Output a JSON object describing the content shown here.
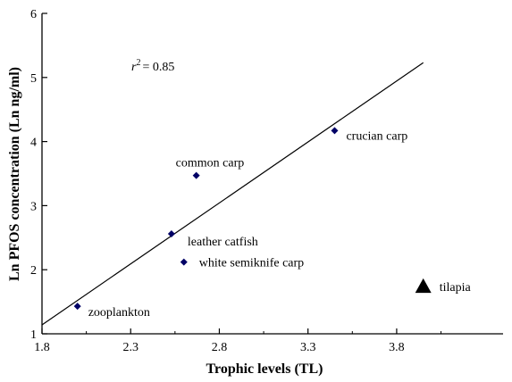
{
  "chart_data": {
    "type": "scatter",
    "title": "",
    "xlabel": "Trophic levels (TL)",
    "ylabel": "Ln PFOS concentration (Ln ng/ml)",
    "xlim": [
      1.8,
      4.4
    ],
    "ylim": [
      1,
      6
    ],
    "xticks": [
      1.8,
      2.3,
      2.8,
      3.3,
      3.8
    ],
    "xtick_labels": [
      "1.8",
      "2.3",
      "2.8",
      "3.3",
      "3.8"
    ],
    "yticks": [
      1,
      2,
      3,
      4,
      5,
      6
    ],
    "ytick_labels": [
      "1",
      "2",
      "3",
      "4",
      "5",
      "6"
    ],
    "points": [
      {
        "name": "zooplankton",
        "x": 2.0,
        "y": 1.43,
        "marker": "diamond"
      },
      {
        "name": "leather catfish",
        "x": 2.53,
        "y": 2.56,
        "marker": "diamond"
      },
      {
        "name": "white semiknife carp",
        "x": 2.6,
        "y": 2.12,
        "marker": "diamond"
      },
      {
        "name": "common carp",
        "x": 2.67,
        "y": 3.47,
        "marker": "diamond"
      },
      {
        "name": "crucian carp",
        "x": 3.45,
        "y": 4.17,
        "marker": "diamond"
      },
      {
        "name": "tilapia",
        "x": 3.95,
        "y": 1.74,
        "marker": "triangle"
      }
    ],
    "regression_line": {
      "x": [
        1.8,
        3.95
      ],
      "y": [
        1.14,
        5.23
      ]
    },
    "annotation": {
      "r_symbol": "r",
      "superscript": "2",
      "text": "=  0.85"
    },
    "colors": {
      "point": "#000066",
      "tilapia": "#000000",
      "line": "#000000",
      "axis": "#000000"
    }
  }
}
